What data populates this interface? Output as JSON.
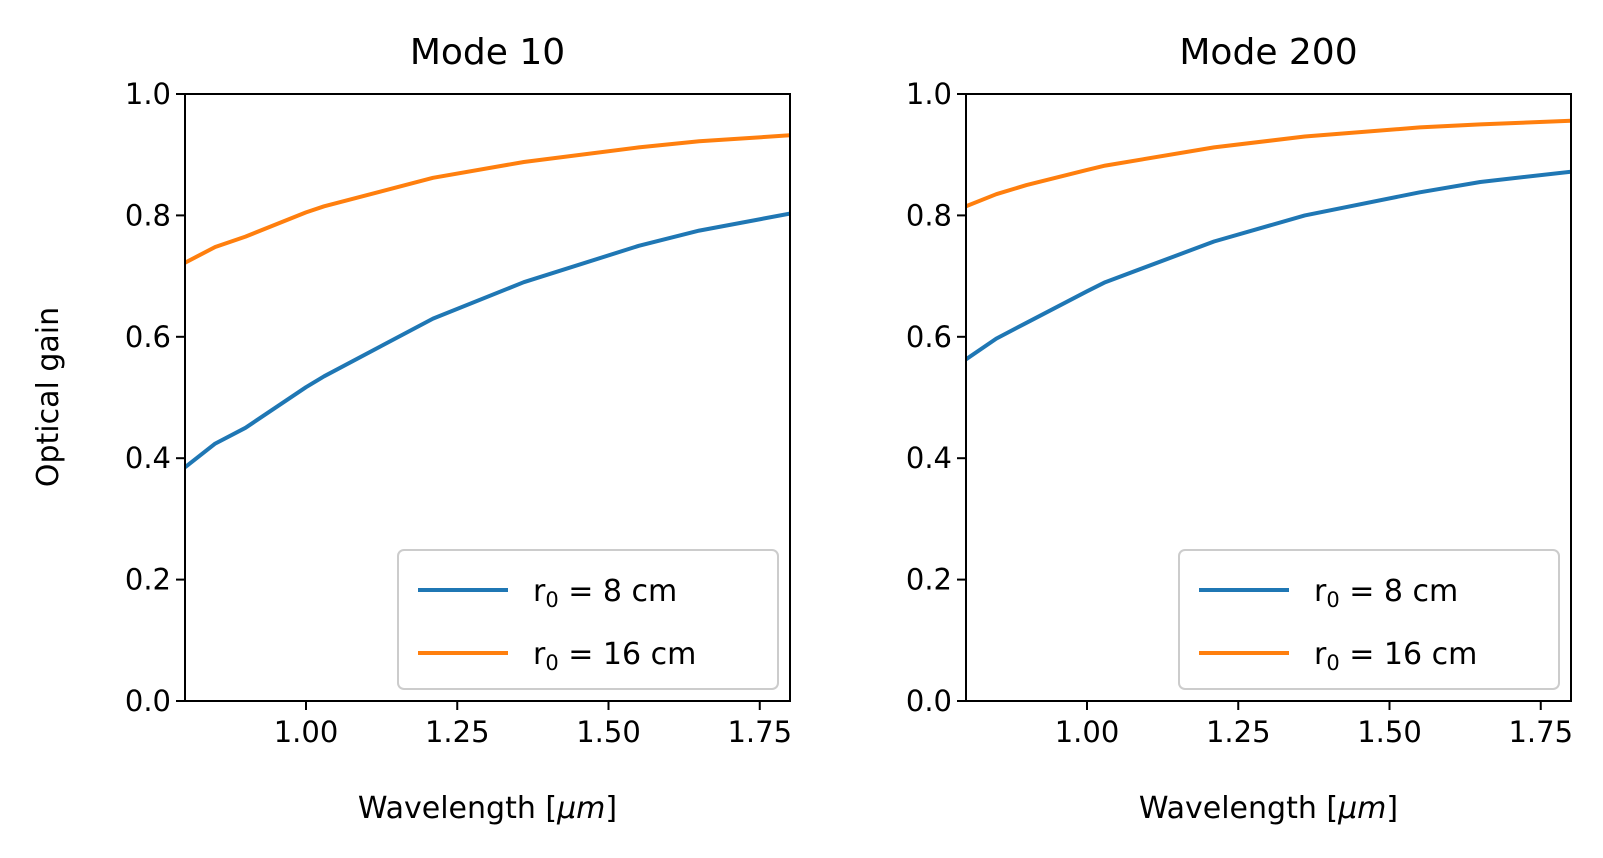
{
  "figure": {
    "ylabel": "Optical gain"
  },
  "chart_data": [
    {
      "type": "line",
      "title": "Mode 10",
      "xlabel": "Wavelength [",
      "xlabel_math": "μm",
      "xlabel_close": "]",
      "ylabel": "Optical gain",
      "xlim": [
        0.8,
        1.8
      ],
      "ylim": [
        0.0,
        1.0
      ],
      "xticks": [
        1.0,
        1.25,
        1.5,
        1.75
      ],
      "xtick_labels": [
        "1.00",
        "1.25",
        "1.50",
        "1.75"
      ],
      "yticks": [
        0.0,
        0.2,
        0.4,
        0.6,
        0.8,
        1.0
      ],
      "ytick_labels": [
        "0.0",
        "0.2",
        "0.4",
        "0.6",
        "0.8",
        "1.0"
      ],
      "legend_position": "lower-right",
      "x": [
        0.8,
        0.85,
        0.9,
        1.0,
        1.03,
        1.21,
        1.36,
        1.55,
        1.65,
        1.8
      ],
      "series": [
        {
          "name": "r0 = 8 cm",
          "label_base": "r",
          "label_sub": "0",
          "label_rest": " = 8 cm",
          "color": "#1f77b4",
          "values": [
            0.385,
            0.424,
            0.45,
            0.517,
            0.535,
            0.63,
            0.69,
            0.75,
            0.775,
            0.803
          ]
        },
        {
          "name": "r0 = 16 cm",
          "label_base": "r",
          "label_sub": "0",
          "label_rest": " = 16 cm",
          "color": "#ff7f0e",
          "values": [
            0.722,
            0.748,
            0.765,
            0.805,
            0.815,
            0.862,
            0.888,
            0.912,
            0.922,
            0.932
          ]
        }
      ]
    },
    {
      "type": "line",
      "title": "Mode 200",
      "xlabel": "Wavelength [",
      "xlabel_math": "μm",
      "xlabel_close": "]",
      "ylabel": "",
      "xlim": [
        0.8,
        1.8
      ],
      "ylim": [
        0.0,
        1.0
      ],
      "xticks": [
        1.0,
        1.25,
        1.5,
        1.75
      ],
      "xtick_labels": [
        "1.00",
        "1.25",
        "1.50",
        "1.75"
      ],
      "yticks": [
        0.0,
        0.2,
        0.4,
        0.6,
        0.8,
        1.0
      ],
      "ytick_labels": [
        "0.0",
        "0.2",
        "0.4",
        "0.6",
        "0.8",
        "1.0"
      ],
      "legend_position": "lower-right",
      "x": [
        0.8,
        0.85,
        0.9,
        1.0,
        1.03,
        1.21,
        1.36,
        1.55,
        1.65,
        1.8
      ],
      "series": [
        {
          "name": "r0 = 8 cm",
          "label_base": "r",
          "label_sub": "0",
          "label_rest": " = 8 cm",
          "color": "#1f77b4",
          "values": [
            0.563,
            0.597,
            0.623,
            0.675,
            0.69,
            0.757,
            0.8,
            0.838,
            0.855,
            0.872
          ]
        },
        {
          "name": "r0 = 16 cm",
          "label_base": "r",
          "label_sub": "0",
          "label_rest": " = 16 cm",
          "color": "#ff7f0e",
          "values": [
            0.815,
            0.835,
            0.85,
            0.875,
            0.882,
            0.912,
            0.93,
            0.945,
            0.95,
            0.956
          ]
        }
      ]
    }
  ]
}
